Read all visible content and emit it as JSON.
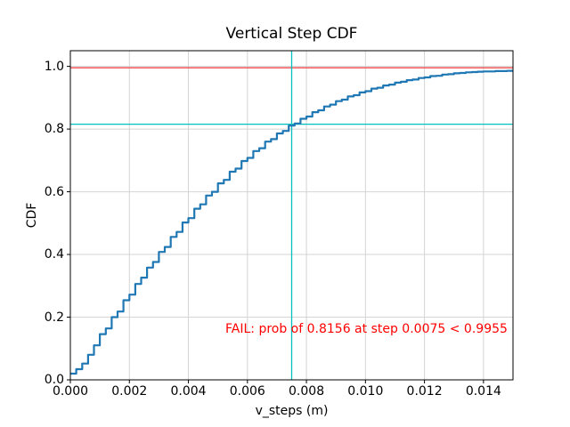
{
  "chart_data": {
    "type": "line",
    "title": "Vertical Step CDF",
    "xlabel": "v_steps (m)",
    "ylabel": "CDF",
    "xlim": [
      0,
      0.015
    ],
    "ylim": [
      0,
      1.05
    ],
    "grid": true,
    "x_axis": {
      "tick_values": [
        0,
        0.002,
        0.004,
        0.006,
        0.008,
        0.01,
        0.012,
        0.014
      ],
      "tick_labels": [
        "0.000",
        "0.002",
        "0.004",
        "0.006",
        "0.008",
        "0.010",
        "0.012",
        "0.014"
      ]
    },
    "y_axis": {
      "tick_values": [
        0.0,
        0.2,
        0.4,
        0.6,
        0.8,
        1.0
      ],
      "tick_labels": [
        "0.0",
        "0.2",
        "0.4",
        "0.6",
        "0.8",
        "1.0"
      ]
    },
    "series": [
      {
        "name": "empirical-cdf",
        "style": "step-post",
        "x_start": 0,
        "x_step": 0.0002,
        "y": [
          0.02,
          0.034,
          0.052,
          0.08,
          0.11,
          0.146,
          0.164,
          0.2,
          0.218,
          0.254,
          0.272,
          0.306,
          0.326,
          0.358,
          0.376,
          0.408,
          0.424,
          0.456,
          0.472,
          0.502,
          0.516,
          0.546,
          0.56,
          0.588,
          0.6,
          0.627,
          0.638,
          0.664,
          0.674,
          0.698,
          0.708,
          0.73,
          0.739,
          0.76,
          0.768,
          0.786,
          0.794,
          0.811,
          0.818,
          0.833,
          0.84,
          0.854,
          0.86,
          0.872,
          0.878,
          0.889,
          0.894,
          0.904,
          0.908,
          0.917,
          0.921,
          0.929,
          0.932,
          0.939,
          0.942,
          0.948,
          0.951,
          0.956,
          0.958,
          0.963,
          0.965,
          0.969,
          0.97,
          0.974,
          0.975,
          0.978,
          0.979,
          0.981,
          0.982,
          0.983,
          0.984,
          0.984,
          0.985,
          0.985,
          0.986,
          0.986
        ]
      }
    ],
    "lines": [
      {
        "name": "target-prob-hline",
        "orientation": "horizontal",
        "value": 0.9955,
        "color": "#f04a4a"
      },
      {
        "name": "achieved-prob-hline",
        "orientation": "horizontal",
        "value": 0.8156,
        "color": "#00bfbf"
      },
      {
        "name": "step-threshold-vline",
        "orientation": "vertical",
        "value": 0.0075,
        "color": "#00bfbf"
      }
    ],
    "thresholds": {
      "achieved_prob": 0.8156,
      "step_value": 0.0075,
      "target_prob": 0.9955
    },
    "annotation": {
      "text": "FAIL: prob of 0.8156 at step 0.0075 < 0.9955",
      "color": "#ff0000"
    },
    "colors": {
      "series": "#1f77b4",
      "grid": "#d4d4d4",
      "spine": "#000000",
      "background": "#ffffff"
    }
  }
}
